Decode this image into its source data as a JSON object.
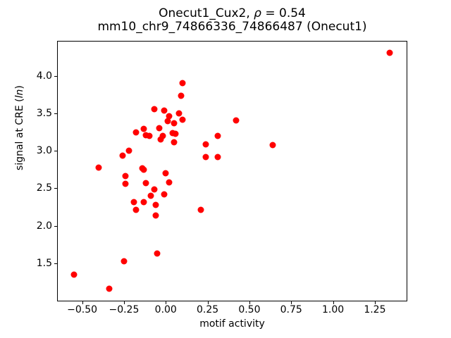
{
  "figure": {
    "title_parts": {
      "prefix": "Onecut1_Cux2, ",
      "rho": "ρ",
      "suffix": " = 0.54"
    },
    "subtitle": "mm10_chr9_74866336_74866487 (Onecut1)",
    "ylabel_parts": {
      "prefix": "signal at CRE (",
      "italic": "ln",
      "suffix": ")"
    }
  },
  "chart_data": {
    "type": "scatter",
    "title": "Onecut1_Cux2, ρ = 0.54",
    "subtitle": "mm10_chr9_74866336_74866487 (Onecut1)",
    "xlabel": "motif activity",
    "ylabel": "signal at CRE (ln)",
    "rho": 0.54,
    "xlim": [
      -0.65,
      1.44
    ],
    "ylim": [
      1.0,
      4.47
    ],
    "grid": false,
    "legend": "none",
    "marker_color": "#ff0000",
    "axis_color": "#000000",
    "xticks": {
      "values": [
        -0.5,
        -0.25,
        0.0,
        0.25,
        0.5,
        0.75,
        1.0,
        1.25
      ],
      "labels": [
        "−0.50",
        "−0.25",
        "0.00",
        "0.25",
        "0.50",
        "0.75",
        "1.00",
        "1.25"
      ]
    },
    "yticks": {
      "values": [
        1.5,
        2.0,
        2.5,
        3.0,
        3.5,
        4.0
      ],
      "labels": [
        "1.5",
        "2.0",
        "2.5",
        "3.0",
        "3.5",
        "4.0"
      ]
    },
    "points": [
      [
        1.34,
        4.31
      ],
      [
        0.1,
        3.91
      ],
      [
        0.09,
        3.74
      ],
      [
        -0.07,
        3.56
      ],
      [
        -0.01,
        3.54
      ],
      [
        0.08,
        3.5
      ],
      [
        0.02,
        3.46
      ],
      [
        0.1,
        3.42
      ],
      [
        0.42,
        3.41
      ],
      [
        0.01,
        3.4
      ],
      [
        0.05,
        3.37
      ],
      [
        -0.04,
        3.3
      ],
      [
        -0.13,
        3.29
      ],
      [
        -0.18,
        3.25
      ],
      [
        0.04,
        3.24
      ],
      [
        0.06,
        3.23
      ],
      [
        -0.12,
        3.21
      ],
      [
        0.31,
        3.2
      ],
      [
        -0.1,
        3.2
      ],
      [
        -0.02,
        3.2
      ],
      [
        -0.03,
        3.15
      ],
      [
        0.05,
        3.12
      ],
      [
        0.24,
        3.09
      ],
      [
        0.64,
        3.08
      ],
      [
        -0.22,
        3.0
      ],
      [
        -0.26,
        2.94
      ],
      [
        0.24,
        2.92
      ],
      [
        0.31,
        2.92
      ],
      [
        -0.4,
        2.78
      ],
      [
        -0.14,
        2.77
      ],
      [
        -0.13,
        2.75
      ],
      [
        0.0,
        2.7
      ],
      [
        -0.24,
        2.66
      ],
      [
        0.02,
        2.58
      ],
      [
        -0.12,
        2.57
      ],
      [
        -0.24,
        2.56
      ],
      [
        -0.07,
        2.49
      ],
      [
        -0.01,
        2.42
      ],
      [
        -0.09,
        2.4
      ],
      [
        -0.19,
        2.32
      ],
      [
        -0.13,
        2.32
      ],
      [
        -0.06,
        2.28
      ],
      [
        -0.18,
        2.21
      ],
      [
        0.21,
        2.21
      ],
      [
        -0.06,
        2.14
      ],
      [
        -0.05,
        1.63
      ],
      [
        -0.25,
        1.53
      ],
      [
        -0.55,
        1.35
      ],
      [
        -0.34,
        1.16
      ]
    ]
  }
}
